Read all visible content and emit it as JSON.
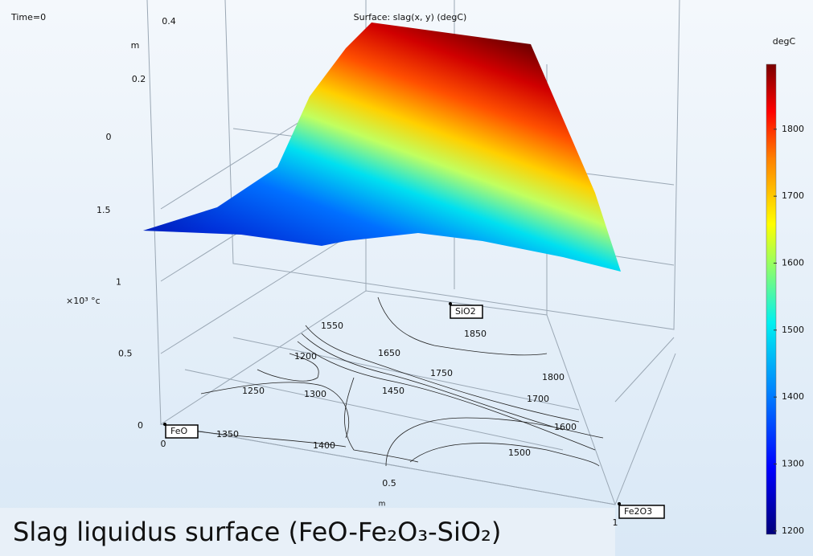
{
  "chart_data": {
    "type": "surface",
    "time_label": "Time=0",
    "title": "Surface: slag(x, y) (degC)",
    "caption": "Slag liquidus surface (FeO-Fe₂O₃-SiO₂)",
    "colorbar": {
      "label": "degC",
      "lim": [
        1195,
        1897
      ],
      "ticks": [
        1200,
        1300,
        1400,
        1500,
        1600,
        1700,
        1800
      ]
    },
    "z_axis": {
      "label": "×10³ °c",
      "ticks": [
        0,
        0.5,
        1,
        1.5
      ]
    },
    "y_axis": {
      "label": "m",
      "ticks": [
        0,
        0.2,
        0.4
      ]
    },
    "x_axis": {
      "label": "m",
      "ticks": [
        0,
        0.5,
        1
      ]
    },
    "vertices": [
      "FeO",
      "SiO2",
      "Fe2O3"
    ],
    "contour_labels": [
      1550,
      1200,
      1650,
      1850,
      1750,
      1800,
      1250,
      1300,
      1450,
      1700,
      1600,
      1350,
      1400,
      1500
    ]
  }
}
